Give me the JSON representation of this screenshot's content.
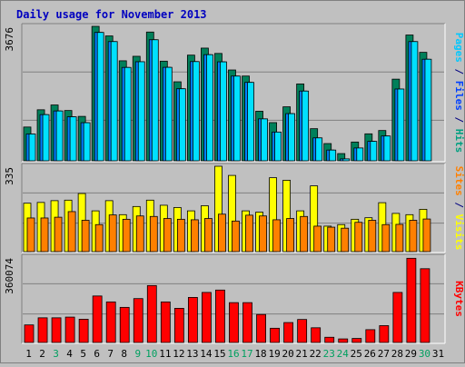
{
  "chart_data": [
    {
      "type": "bar",
      "title": "Daily usage for November 2013",
      "panel": "pages-files-hits",
      "ymax_label": "3676",
      "right_labels": [
        {
          "text": "Pages",
          "color": "#00c8ff"
        },
        {
          "text": " / ",
          "color": "#000080"
        },
        {
          "text": "Files",
          "color": "#0040ff"
        },
        {
          "text": " / ",
          "color": "#000080"
        },
        {
          "text": "Hits",
          "color": "#00a080"
        }
      ],
      "categories": [
        "1",
        "2",
        "3",
        "4",
        "5",
        "6",
        "7",
        "8",
        "9",
        "10",
        "11",
        "12",
        "13",
        "14",
        "15",
        "16",
        "17",
        "18",
        "19",
        "20",
        "21",
        "22",
        "23",
        "24",
        "25",
        "26",
        "27",
        "28",
        "29",
        "30",
        "31"
      ],
      "series": [
        {
          "name": "Hits",
          "color": "#00805a",
          "values": [
            923,
            1395,
            1526,
            1375,
            1214,
            3676,
            3414,
            2734,
            2857,
            3520,
            2724,
            2160,
            2889,
            3081,
            2935,
            2483,
            2317,
            1355,
            1044,
            1476,
            2101,
            878,
            471,
            197,
            513,
            737,
            828,
            2232,
            3439,
            2965,
            0
          ]
        },
        {
          "name": "Files",
          "color": "#0080ff",
          "values": [
            808,
            1337,
            1437,
            1278,
            1116,
            3584,
            3334,
            2627,
            2783,
            3384,
            2630,
            2044,
            2787,
            2976,
            2780,
            2391,
            2218,
            1221,
            860,
            1364,
            1981,
            701,
            368,
            127,
            425,
            606,
            753,
            2037,
            3334,
            2851,
            0
          ]
        },
        {
          "name": "Pages",
          "color": "#00e0ff",
          "values": [
            808,
            1337,
            1437,
            1278,
            1116,
            3584,
            3334,
            2627,
            2783,
            3384,
            2630,
            2044,
            2787,
            2976,
            2780,
            2391,
            2218,
            1221,
            860,
            1364,
            1981,
            701,
            368,
            127,
            425,
            606,
            753,
            2037,
            3334,
            2851,
            0
          ]
        }
      ],
      "ylim": [
        0,
        3676
      ]
    },
    {
      "type": "bar",
      "panel": "visits-sites",
      "ymax_label": "335",
      "right_labels": [
        {
          "text": "Sites",
          "color": "#ff8000"
        },
        {
          "text": " / ",
          "color": "#000080"
        },
        {
          "text": "Visits",
          "color": "#ffff00"
        }
      ],
      "categories": [
        "1",
        "2",
        "3",
        "4",
        "5",
        "6",
        "7",
        "8",
        "9",
        "10",
        "11",
        "12",
        "13",
        "14",
        "15",
        "16",
        "17",
        "18",
        "19",
        "20",
        "21",
        "22",
        "23",
        "24",
        "25",
        "26",
        "27",
        "28",
        "29",
        "30",
        "31"
      ],
      "series": [
        {
          "name": "Visits",
          "color": "#ffff00",
          "values": [
            190,
            193,
            200,
            202,
            228,
            160,
            200,
            145,
            177,
            202,
            182,
            173,
            160,
            180,
            335,
            299,
            160,
            155,
            290,
            280,
            160,
            258,
            100,
            106,
            127,
            133,
            192,
            150,
            145,
            166,
            0
          ]
        },
        {
          "name": "Sites",
          "color": "#ff8000",
          "values": [
            132,
            132,
            135,
            157,
            123,
            106,
            144,
            127,
            140,
            138,
            130,
            127,
            125,
            130,
            147,
            120,
            143,
            140,
            125,
            130,
            138,
            100,
            96,
            92,
            115,
            123,
            106,
            107,
            123,
            128,
            0
          ]
        }
      ],
      "ylim": [
        0,
        335
      ]
    },
    {
      "type": "bar",
      "panel": "kbytes",
      "ymax_label": "360074",
      "right_labels": [
        {
          "text": "KBytes",
          "color": "#ff0000"
        }
      ],
      "categories": [
        "1",
        "2",
        "3",
        "4",
        "5",
        "6",
        "7",
        "8",
        "9",
        "10",
        "11",
        "12",
        "13",
        "14",
        "15",
        "16",
        "17",
        "18",
        "19",
        "20",
        "21",
        "22",
        "23",
        "24",
        "25",
        "26",
        "27",
        "28",
        "29",
        "30",
        "31"
      ],
      "series": [
        {
          "name": "KBytes",
          "color": "#ff0000",
          "values": [
            74000,
            104000,
            104000,
            107000,
            98000,
            196000,
            171000,
            148000,
            185000,
            240000,
            171000,
            144000,
            190000,
            211000,
            221000,
            168000,
            168000,
            118000,
            60000,
            84000,
            97000,
            62000,
            22000,
            15000,
            17000,
            54000,
            71000,
            211000,
            355000,
            311000,
            0
          ]
        }
      ],
      "ylim": [
        0,
        360074
      ]
    }
  ],
  "footer_days": [
    {
      "label": "1",
      "weekend": false
    },
    {
      "label": "2",
      "weekend": false
    },
    {
      "label": "3",
      "weekend": true
    },
    {
      "label": "4",
      "weekend": false
    },
    {
      "label": "5",
      "weekend": false
    },
    {
      "label": "6",
      "weekend": false
    },
    {
      "label": "7",
      "weekend": false
    },
    {
      "label": "8",
      "weekend": false
    },
    {
      "label": "9",
      "weekend": true
    },
    {
      "label": "10",
      "weekend": true
    },
    {
      "label": "11",
      "weekend": false
    },
    {
      "label": "12",
      "weekend": false
    },
    {
      "label": "13",
      "weekend": false
    },
    {
      "label": "14",
      "weekend": false
    },
    {
      "label": "15",
      "weekend": false
    },
    {
      "label": "16",
      "weekend": true
    },
    {
      "label": "17",
      "weekend": true
    },
    {
      "label": "18",
      "weekend": false
    },
    {
      "label": "19",
      "weekend": false
    },
    {
      "label": "20",
      "weekend": false
    },
    {
      "label": "21",
      "weekend": false
    },
    {
      "label": "22",
      "weekend": false
    },
    {
      "label": "23",
      "weekend": true
    },
    {
      "label": "24",
      "weekend": true
    },
    {
      "label": "25",
      "weekend": false
    },
    {
      "label": "26",
      "weekend": false
    },
    {
      "label": "27",
      "weekend": false
    },
    {
      "label": "28",
      "weekend": false
    },
    {
      "label": "29",
      "weekend": false
    },
    {
      "label": "30",
      "weekend": true
    },
    {
      "label": "31",
      "weekend": false
    }
  ],
  "colors": {
    "background": "#c0c0c0",
    "title": "#0000c0",
    "weekday_label": "#000000",
    "weekend_label": "#00a060",
    "grid": "#808080"
  }
}
